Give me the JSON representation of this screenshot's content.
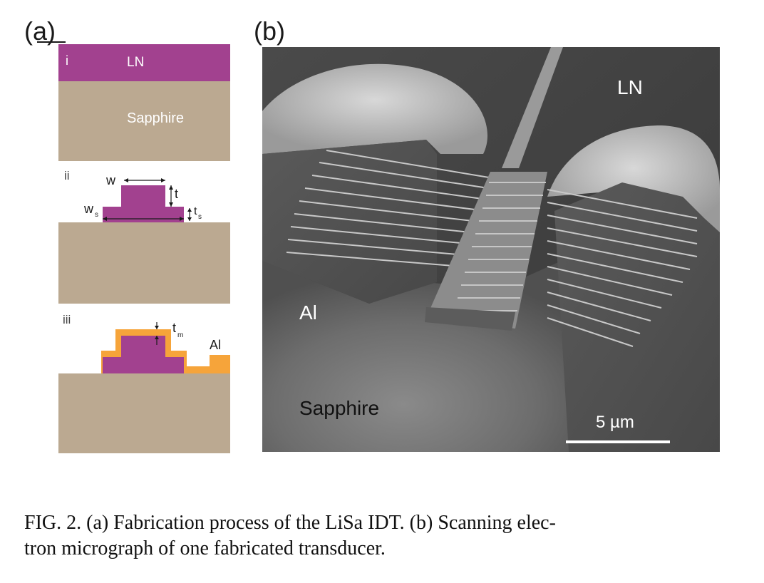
{
  "panel_a": {
    "label": "(a)",
    "step_i": {
      "index": "i",
      "top_layer": "LN",
      "substrate": "Sapphire"
    },
    "step_ii": {
      "index": "ii",
      "w": "w",
      "t": "t",
      "w_s": "w",
      "w_s_sub": "s",
      "t_s": "t",
      "t_s_sub": "s"
    },
    "step_iii": {
      "index": "iii",
      "t_m": "t",
      "t_m_sub": "m",
      "metal": "Al"
    },
    "colors": {
      "ln": "#a2418f",
      "sapphire": "#bba991",
      "al": "#f6a43a"
    }
  },
  "panel_b": {
    "label": "(b)",
    "ln": "LN",
    "al": "Al",
    "sapphire": "Sapphire",
    "scale": "5 µm"
  },
  "caption": {
    "line1": "FIG. 2.   (a) Fabrication process of the LiSa IDT. (b) Scanning elec-",
    "line2": "tron micrograph of one fabricated transducer."
  }
}
